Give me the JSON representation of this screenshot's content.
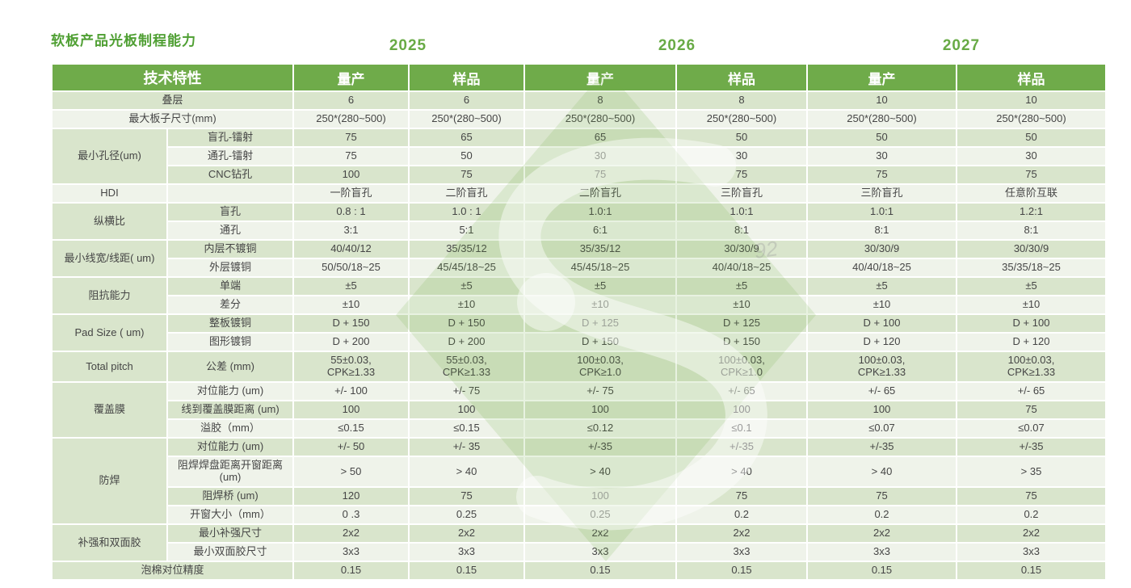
{
  "title": "软板产品光板制程能力",
  "years": [
    "2025",
    "2026",
    "2027"
  ],
  "header": {
    "feature_label": "技术特性",
    "col_labels": [
      "量产",
      "样品",
      "量产",
      "样品",
      "量产",
      "样品"
    ]
  },
  "watermark": {
    "logo_color": "#71ad47",
    "faint_text": "92"
  },
  "colors": {
    "header_bg": "#6fab4a",
    "stripe_dark": "#d9e5cc",
    "stripe_light": "#eff3ea",
    "title_green": "#4f9f33",
    "year_green": "#68aa45"
  },
  "table": {
    "rows": [
      {
        "cat": "叠层",
        "full": true,
        "values": [
          "6",
          "6",
          "8",
          "8",
          "10",
          "10"
        ]
      },
      {
        "cat": "最大板子尺寸(mm)",
        "full": true,
        "values": [
          "250*(280~500)",
          "250*(280~500)",
          "250*(280~500)",
          "250*(280~500)",
          "250*(280~500)",
          "250*(280~500)"
        ]
      },
      {
        "cat": "最小孔径(um)",
        "catspan": 3,
        "sub": "盲孔-镭射",
        "values": [
          "75",
          "65",
          "65",
          "50",
          "50",
          "50"
        ]
      },
      {
        "sub": "通孔-镭射",
        "values": [
          "75",
          "50",
          "30",
          "30",
          "30",
          "30"
        ]
      },
      {
        "sub": "CNC钻孔",
        "values": [
          "100",
          "75",
          "75",
          "75",
          "75",
          "75"
        ]
      },
      {
        "cat": "HDI",
        "catspan": 1,
        "sub": "",
        "values": [
          "一阶盲孔",
          "二阶盲孔",
          "二阶盲孔",
          "三阶盲孔",
          "三阶盲孔",
          "任意阶互联"
        ]
      },
      {
        "cat": "纵横比",
        "catspan": 2,
        "sub": "盲孔",
        "values": [
          "0.8 : 1",
          "1.0 : 1",
          "1.0:1",
          "1.0:1",
          "1.0:1",
          "1.2:1"
        ]
      },
      {
        "sub": "通孔",
        "values": [
          "3:1",
          "5:1",
          "6:1",
          "8:1",
          "8:1",
          "8:1"
        ]
      },
      {
        "cat": "最小线宽/线距( um)",
        "catspan": 2,
        "sub": "内层不镀铜",
        "values": [
          "40/40/12",
          "35/35/12",
          "35/35/12",
          "30/30/9",
          "30/30/9",
          "30/30/9"
        ]
      },
      {
        "sub": "外层镀铜",
        "values": [
          "50/50/18~25",
          "45/45/18~25",
          "45/45/18~25",
          "40/40/18~25",
          "40/40/18~25",
          "35/35/18~25"
        ]
      },
      {
        "cat": "阻抗能力",
        "catspan": 2,
        "sub": "单端",
        "values": [
          "±5",
          "±5",
          "±5",
          "±5",
          "±5",
          "±5"
        ]
      },
      {
        "sub": "差分",
        "values": [
          "±10",
          "±10",
          "±10",
          "±10",
          "±10",
          "±10"
        ]
      },
      {
        "cat": "Pad Size ( um)",
        "catspan": 2,
        "sub": "整板镀铜",
        "values": [
          "D + 150",
          "D + 150",
          "D + 125",
          "D + 125",
          "D + 100",
          "D + 100"
        ]
      },
      {
        "sub": "图形镀铜",
        "values": [
          "D + 200",
          "D + 200",
          "D + 150",
          "D + 150",
          "D + 120",
          "D + 120"
        ]
      },
      {
        "cat": "Total pitch",
        "catspan": 1,
        "sub": "公差 (mm)",
        "tall": true,
        "values": [
          "55±0.03,\nCPK≥1.33",
          "55±0.03,\nCPK≥1.33",
          "100±0.03,\nCPK≥1.0",
          "100±0.03,\nCPK≥1.0",
          "100±0.03,\nCPK≥1.33",
          "100±0.03,\nCPK≥1.33"
        ]
      },
      {
        "cat": "覆盖膜",
        "catspan": 3,
        "sub": "对位能力 (um)",
        "values": [
          "+/- 100",
          "+/- 75",
          "+/- 75",
          "+/- 65",
          "+/- 65",
          "+/- 65"
        ]
      },
      {
        "sub": "线到覆盖膜距离 (um)",
        "values": [
          "100",
          "100",
          "100",
          "100",
          "100",
          "75"
        ]
      },
      {
        "sub": "溢胶（mm）",
        "values": [
          "≤0.15",
          "≤0.15",
          "≤0.12",
          "≤0.1",
          "≤0.07",
          "≤0.07"
        ]
      },
      {
        "cat": "防焊",
        "catspan": 4,
        "sub": "对位能力 (um)",
        "values": [
          "+/- 50",
          "+/- 35",
          "+/-35",
          "+/-35",
          "+/-35",
          "+/-35"
        ]
      },
      {
        "sub": "阻焊焊盘距离开窗距离 (um)",
        "tall": true,
        "values": [
          "> 50",
          "> 40",
          "> 40",
          "> 40",
          "> 40",
          "> 35"
        ]
      },
      {
        "sub": "阻焊桥 (um)",
        "values": [
          "120",
          "75",
          "100",
          "75",
          "75",
          "75"
        ]
      },
      {
        "sub": "开窗大小（mm）",
        "values": [
          "0 .3",
          "0.25",
          "0.25",
          "0.2",
          "0.2",
          "0.2"
        ]
      },
      {
        "cat": "补强和双面胶",
        "catspan": 2,
        "sub": "最小补强尺寸",
        "values": [
          "2x2",
          "2x2",
          "2x2",
          "2x2",
          "2x2",
          "2x2"
        ]
      },
      {
        "sub": "最小双面胶尺寸",
        "values": [
          "3x3",
          "3x3",
          "3x3",
          "3x3",
          "3x3",
          "3x3"
        ]
      },
      {
        "cat": "泡棉对位精度",
        "full": true,
        "values": [
          "0.15",
          "0.15",
          "0.15",
          "0.15",
          "0.15",
          "0.15"
        ]
      }
    ]
  }
}
